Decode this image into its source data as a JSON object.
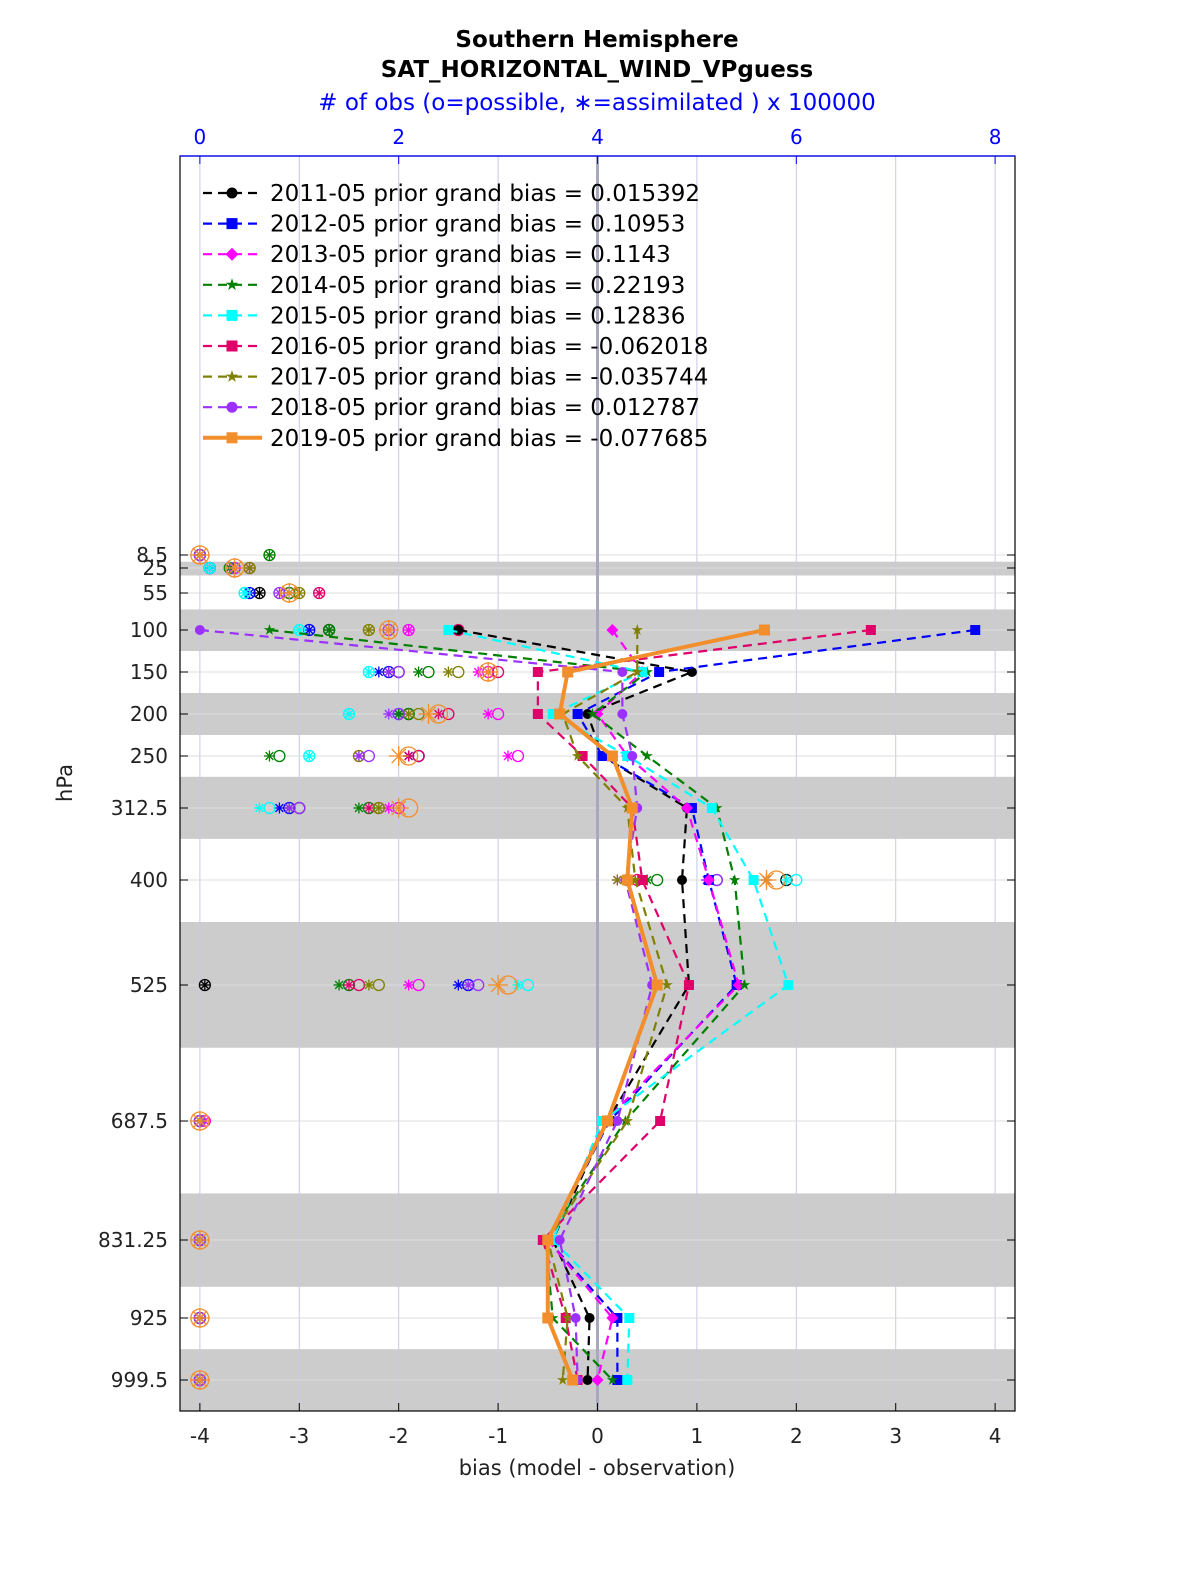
{
  "chart_data": {
    "type": "line",
    "title": "Southern Hemisphere",
    "subtitle": "SAT_HORIZONTAL_WIND_VPguess",
    "top_axis_label": "# of obs (o=possible, ∗=assimilated ) x 100000",
    "xlabel": "bias (model - observation)",
    "ylabel": "hPa",
    "xlim": [
      -4.2,
      4.2
    ],
    "xticks": [
      "-4",
      "-3",
      "-2",
      "-1",
      "0",
      "1",
      "2",
      "3",
      "4"
    ],
    "top_xlim": [
      -0.2,
      8.2
    ],
    "top_xticks": [
      "0",
      "2",
      "4",
      "6",
      "8"
    ],
    "levels": [
      8.5,
      25,
      55,
      100,
      150,
      200,
      250,
      312.5,
      400,
      525,
      687.5,
      831.25,
      925,
      999.5
    ],
    "level_labels": [
      "8.5",
      "25",
      "55",
      "100",
      "150",
      "200",
      "250",
      "312.5",
      "400",
      "525",
      "687.5",
      "831.25",
      "925",
      "999.5"
    ],
    "shaded_bands": [
      [
        17,
        34
      ],
      [
        75,
        125
      ],
      [
        175,
        225
      ],
      [
        275,
        350
      ],
      [
        450,
        600
      ],
      [
        775,
        887.5
      ],
      [
        962.5,
        1037
      ]
    ],
    "legend_position": "top-left",
    "series": [
      {
        "name": "2011-05 prior grand bias = 0.015392",
        "color": "#000000",
        "marker": "circle",
        "style": "dash",
        "bias": [
          -1.4,
          0.95,
          -0.1,
          0.05,
          0.9,
          0.85,
          0.92,
          0.1,
          -0.45,
          -0.08
        ],
        "obs_possible": [
          0.0,
          0.1,
          0.6,
          1.3,
          2.0,
          2.1,
          2.2,
          1.0,
          5.9,
          0.05,
          0.0,
          0.0,
          0.0,
          0.0
        ],
        "obs_assimilated": [
          0.0,
          0.1,
          0.6,
          1.3,
          1.9,
          2.0,
          2.1,
          0.9,
          5.7,
          0.05,
          0.0,
          0.0,
          0.0,
          0.0
        ]
      },
      {
        "name": "2012-05 prior grand bias = 0.10953",
        "color": "#0000ff",
        "marker": "square",
        "style": "dash",
        "bias": [
          3.8,
          0.62,
          -0.2,
          0.05,
          0.95,
          1.12,
          1.4,
          0.12,
          -0.5,
          0.2
        ],
        "obs_possible": [
          0.0,
          0.1,
          0.5,
          1.1,
          1.9,
          2.0,
          2.2,
          0.9,
          5.2,
          2.7,
          0.0,
          0.0,
          0.0,
          0.0
        ],
        "obs_assimilated": [
          0.0,
          0.1,
          0.5,
          1.1,
          1.8,
          2.0,
          2.1,
          0.8,
          5.1,
          2.6,
          0.0,
          0.0,
          0.0,
          0.0
        ]
      },
      {
        "name": "2013-05 prior grand bias = 0.1143",
        "color": "#ff00ff",
        "marker": "diamond",
        "style": "dash",
        "bias": [
          0.15,
          0.45,
          0.0,
          0.3,
          0.9,
          1.12,
          1.42,
          0.08,
          -0.5,
          0.15
        ],
        "obs_possible": [
          0.0,
          0.35,
          0.9,
          2.1,
          2.9,
          3.0,
          3.2,
          2.0,
          4.3,
          2.2,
          0.05,
          0.0,
          0.0,
          0.0
        ],
        "obs_assimilated": [
          0.0,
          0.35,
          0.9,
          2.1,
          2.8,
          2.9,
          3.1,
          1.9,
          4.2,
          2.1,
          0.05,
          0.0,
          0.0,
          0.0
        ]
      },
      {
        "name": "2014-05 prior grand bias = 0.22193",
        "color": "#008000",
        "marker": "star",
        "style": "dash",
        "bias": [
          -3.3,
          0.5,
          -0.05,
          0.5,
          1.2,
          1.38,
          1.48,
          0.28,
          -0.52,
          -0.45
        ],
        "obs_possible": [
          0.7,
          0.3,
          0.9,
          1.3,
          2.3,
          2.1,
          0.8,
          1.7,
          4.6,
          1.5,
          0.0,
          0.0,
          0.0,
          0.0
        ],
        "obs_assimilated": [
          0.7,
          0.3,
          0.9,
          1.3,
          2.2,
          2.0,
          0.7,
          1.6,
          4.5,
          1.4,
          0.0,
          0.0,
          0.0,
          0.0
        ]
      },
      {
        "name": "2015-05 prior grand bias = 0.12836",
        "color": "#00ffff",
        "marker": "square",
        "style": "dash",
        "bias": [
          -1.5,
          0.45,
          -0.45,
          0.3,
          1.15,
          1.57,
          1.92,
          0.05,
          -0.45,
          0.32
        ],
        "obs_possible": [
          0.0,
          0.1,
          0.45,
          1.0,
          1.7,
          1.5,
          1.1,
          0.7,
          6.0,
          3.3,
          0.0,
          0.0,
          0.0,
          0.0
        ],
        "obs_assimilated": [
          0.0,
          0.1,
          0.45,
          1.0,
          1.7,
          1.5,
          1.1,
          0.6,
          5.9,
          3.2,
          0.0,
          0.0,
          0.0,
          0.0
        ]
      },
      {
        "name": "2016-05 prior grand bias = -0.062018",
        "color": "#e0006a",
        "marker": "square",
        "style": "dash",
        "bias": [
          2.75,
          -0.6,
          -0.6,
          -0.15,
          0.35,
          0.45,
          0.92,
          0.63,
          -0.55,
          -0.32
        ],
        "obs_possible": [
          0.0,
          0.5,
          1.2,
          2.6,
          3.0,
          2.5,
          2.2,
          1.8,
          4.4,
          1.6,
          0.0,
          0.0,
          0.0,
          0.0
        ],
        "obs_assimilated": [
          0.0,
          0.5,
          1.2,
          2.6,
          2.9,
          2.4,
          2.1,
          1.7,
          4.3,
          1.5,
          0.0,
          0.0,
          0.0,
          0.0
        ]
      },
      {
        "name": "2017-05 prior grand bias = -0.035744",
        "color": "#808000",
        "marker": "asterisk",
        "style": "dash",
        "bias": [
          0.4,
          0.4,
          -0.35,
          -0.2,
          0.3,
          0.38,
          0.7,
          0.3,
          -0.5,
          -0.3
        ],
        "obs_possible": [
          0.0,
          0.5,
          1.0,
          1.7,
          2.6,
          2.2,
          1.6,
          1.8,
          4.3,
          1.8,
          0.0,
          0.0,
          0.0,
          0.0
        ],
        "obs_assimilated": [
          0.0,
          0.5,
          1.0,
          1.7,
          2.5,
          2.1,
          1.6,
          1.8,
          4.2,
          1.7,
          0.0,
          0.0,
          0.0,
          0.0
        ]
      },
      {
        "name": "2018-05 prior grand bias = 0.012787",
        "color": "#9b30ff",
        "marker": "circle",
        "style": "dash",
        "bias": [
          -4.0,
          0.25,
          0.25,
          0.35,
          0.4,
          0.28,
          0.55,
          0.2,
          -0.38,
          -0.22
        ],
        "obs_possible": [
          0.0,
          0.35,
          0.8,
          1.9,
          2.0,
          2.0,
          1.7,
          1.0,
          5.2,
          2.8,
          0.0,
          0.0,
          0.0,
          0.0
        ],
        "obs_assimilated": [
          0.0,
          0.35,
          0.8,
          1.9,
          1.9,
          1.9,
          1.6,
          0.9,
          5.1,
          2.7,
          0.0,
          0.0,
          0.0,
          0.0
        ]
      },
      {
        "name": "2019-05 prior grand bias = -0.077685",
        "color": "#f28e2b",
        "marker": "square",
        "style": "solid",
        "bias": [
          1.68,
          -0.3,
          -0.38,
          0.15,
          0.35,
          0.3,
          0.6,
          0.1,
          -0.5,
          -0.5
        ],
        "obs_possible": [
          0.0,
          0.35,
          0.9,
          1.9,
          2.9,
          2.4,
          2.1,
          2.1,
          5.8,
          3.1,
          0.0,
          0.0,
          0.0,
          0.0
        ],
        "obs_assimilated": [
          0.0,
          0.35,
          0.9,
          1.9,
          2.9,
          2.3,
          2.0,
          2.0,
          5.7,
          3.0,
          0.0,
          0.0,
          0.0,
          0.0
        ]
      }
    ],
    "bias_levels": [
      100,
      150,
      200,
      250,
      312.5,
      400,
      525,
      687.5,
      831.25,
      925
    ],
    "bias_levels_extra": [
      999.5
    ],
    "bias_extra": [
      -0.1,
      0.2,
      0.0,
      0.15,
      0.3,
      -0.2,
      -0.35,
      -0.2,
      -0.25,
      -0.1
    ]
  }
}
